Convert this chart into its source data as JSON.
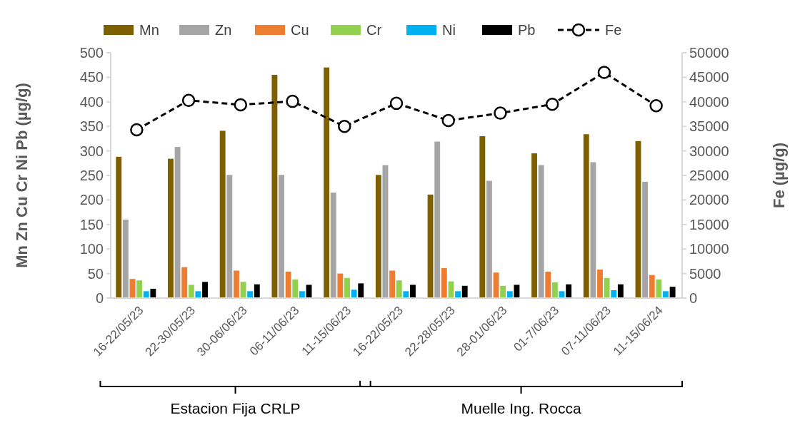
{
  "chart_data": {
    "type": "bar",
    "categories": [
      "16-22/05/23",
      "22-30/05/23",
      "30-06/06/23",
      "06-11/06/23",
      "11-15/06/23",
      "16-22/05/23",
      "22-28/05/23",
      "28-01/06/23",
      "01-7/06/23",
      "07-11/06/23",
      "11-15/06/24"
    ],
    "ylabel": "Mn Zn Cu Cr Ni Pb (µg/g)",
    "y2label": "Fe (µg/g)",
    "ylim": [
      0,
      500
    ],
    "yticks": [
      0,
      50,
      100,
      150,
      200,
      250,
      300,
      350,
      400,
      450,
      500
    ],
    "y2lim": [
      0,
      50000
    ],
    "y2ticks": [
      0,
      5000,
      10000,
      15000,
      20000,
      25000,
      30000,
      35000,
      40000,
      45000,
      50000
    ],
    "legend": "top",
    "grid": false,
    "annotations": [
      "Estacion Fija CRLP",
      "Muelle Ing. Rocca"
    ],
    "series": [
      {
        "name": "Mn",
        "color": "#7f6000",
        "values": [
          288,
          284,
          341,
          455,
          470,
          251,
          211,
          330,
          295,
          334,
          320
        ]
      },
      {
        "name": "Zn",
        "color": "#a5a5a5",
        "values": [
          160,
          308,
          251,
          251,
          215,
          271,
          319,
          239,
          271,
          277,
          237
        ]
      },
      {
        "name": "Cu",
        "color": "#ed7d31",
        "values": [
          39,
          63,
          56,
          54,
          50,
          56,
          61,
          52,
          54,
          58,
          47
        ]
      },
      {
        "name": "Cr",
        "color": "#92d050",
        "values": [
          36,
          27,
          33,
          38,
          41,
          36,
          34,
          25,
          32,
          41,
          38
        ]
      },
      {
        "name": "Ni",
        "color": "#00b0f0",
        "values": [
          14,
          14,
          14,
          14,
          17,
          14,
          14,
          14,
          14,
          16,
          14
        ]
      },
      {
        "name": "Pb",
        "color": "#000000",
        "values": [
          19,
          33,
          28,
          27,
          30,
          27,
          25,
          27,
          28,
          28,
          23
        ]
      },
      {
        "name": "Fe",
        "type": "line",
        "axis": "y2",
        "color": "#000000",
        "marker": "circle",
        "line_style": "dashed",
        "values": [
          34300,
          40300,
          39400,
          40100,
          35000,
          39700,
          36200,
          37700,
          39500,
          46000,
          39200
        ]
      }
    ]
  }
}
